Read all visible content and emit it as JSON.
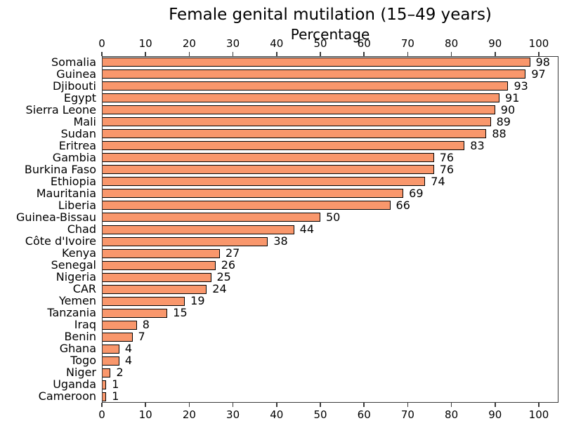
{
  "figure": {
    "background_color": "#ffffff",
    "text_color": "#000000"
  },
  "chart_data": {
    "type": "bar",
    "orientation": "horizontal",
    "title": "Female genital mutilation (15–49 years)",
    "xlabel": "Percentage",
    "xlabel_position": "top",
    "ylabel": "",
    "categories": [
      "Somalia",
      "Guinea",
      "Djibouti",
      "Egypt",
      "Sierra Leone",
      "Mali",
      "Sudan",
      "Eritrea",
      "Gambia",
      "Burkina Faso",
      "Ethiopia",
      "Mauritania",
      "Liberia",
      "Guinea-Bissau",
      "Chad",
      "Côte d'Ivoire",
      "Kenya",
      "Senegal",
      "Nigeria",
      "CAR",
      "Yemen",
      "Tanzania",
      "Iraq",
      "Benin",
      "Ghana",
      "Togo",
      "Niger",
      "Uganda",
      "Cameroon"
    ],
    "values": [
      98,
      97,
      93,
      91,
      90,
      89,
      88,
      83,
      76,
      76,
      74,
      69,
      66,
      50,
      44,
      38,
      27,
      26,
      25,
      24,
      19,
      15,
      8,
      7,
      4,
      4,
      2,
      1,
      1
    ],
    "value_labels_shown": true,
    "xlim": [
      0,
      104.5
    ],
    "xticks": [
      0,
      10,
      20,
      30,
      40,
      50,
      60,
      70,
      80,
      90,
      100
    ],
    "ticks_position": "top-and-bottom",
    "grid": false,
    "legend": "none",
    "bar_color": "#f9976c",
    "bar_edge_color": "#000000",
    "axis_color": "#3a3a3a"
  }
}
